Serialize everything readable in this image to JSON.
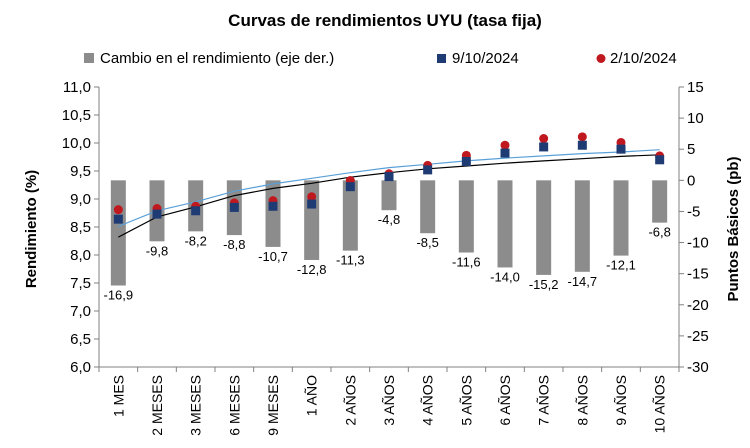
{
  "chart_data": {
    "type": "bar",
    "title": "Curvas de rendimientos UYU (tasa fija)",
    "ylabel_left": "Rendimiento (%)",
    "ylabel_right": "Puntos Básicos (pb)",
    "ylim_left": [
      6.0,
      11.0
    ],
    "yticks_left": [
      "6,0",
      "6,5",
      "7,0",
      "7,5",
      "8,0",
      "8,5",
      "9,0",
      "9,5",
      "10,0",
      "10,5",
      "11,0"
    ],
    "ylim_right": [
      -30,
      15
    ],
    "yticks_right": [
      "-30",
      "-25",
      "-20",
      "-15",
      "-10",
      "-5",
      "0",
      "5",
      "10",
      "15"
    ],
    "grid": false,
    "legend_position": "top",
    "categories": [
      "1 MES",
      "2 MESES",
      "3 MESES",
      "6 MESES",
      "9 MESES",
      "1 AÑO",
      "2 AÑOS",
      "3 AÑOS",
      "4 AÑOS",
      "5 AÑOS",
      "6 AÑOS",
      "7 AÑOS",
      "8 AÑOS",
      "9 AÑOS",
      "10 AÑOS"
    ],
    "series": [
      {
        "name": "Cambio en el rendimiento (eje der.)",
        "kind": "bar",
        "axis": "right",
        "color": "#8c8c8c",
        "values": [
          -16.9,
          -9.8,
          -8.2,
          -8.8,
          -10.7,
          -12.8,
          -11.3,
          -4.8,
          -8.5,
          -11.6,
          -14.0,
          -15.2,
          -14.7,
          -12.1,
          -6.8
        ],
        "labels": [
          "-16,9",
          "-9,8",
          "-8,2",
          "-8,8",
          "-10,7",
          "-12,8",
          "-11,3",
          "-4,8",
          "-8,5",
          "-11,6",
          "-14,0",
          "-15,2",
          "-14,7",
          "-12,1",
          "-6,8"
        ]
      },
      {
        "name": "9/10/2024",
        "kind": "square",
        "axis": "left",
        "color": "#1f3b73",
        "values": [
          8.64,
          8.73,
          8.79,
          8.85,
          8.87,
          8.91,
          9.22,
          9.4,
          9.52,
          9.67,
          9.82,
          9.93,
          9.96,
          9.89,
          9.7
        ]
      },
      {
        "name": "2/10/2024",
        "kind": "circle",
        "axis": "left",
        "color": "#c0181f",
        "values": [
          8.81,
          8.83,
          8.87,
          8.93,
          8.97,
          9.04,
          9.33,
          9.45,
          9.6,
          9.78,
          9.96,
          10.08,
          10.11,
          10.01,
          9.77
        ]
      }
    ],
    "fitted_lines": [
      {
        "color": "#000000",
        "values": [
          8.32,
          8.68,
          8.86,
          9.06,
          9.19,
          9.28,
          9.39,
          9.47,
          9.54,
          9.59,
          9.64,
          9.68,
          9.72,
          9.76,
          9.79
        ]
      },
      {
        "color": "#5aa0d8",
        "values": [
          8.51,
          8.79,
          8.95,
          9.14,
          9.27,
          9.37,
          9.47,
          9.56,
          9.62,
          9.68,
          9.73,
          9.77,
          9.81,
          9.84,
          9.88
        ]
      }
    ]
  }
}
